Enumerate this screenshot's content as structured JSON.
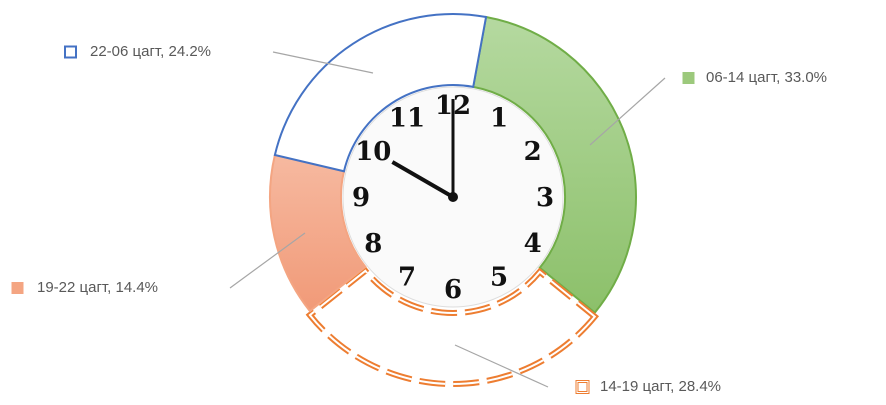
{
  "chart_data": {
    "type": "doughnut",
    "values": [
      33.0,
      28.4,
      14.4,
      24.2
    ],
    "value_labels": [
      "06-14 цагт, 33.0%",
      "14-19 цагт, 28.4%",
      "19-22 цагт, 14.4%",
      "22-06 цагт, 24.2%"
    ],
    "colors": [
      "#9cc97c",
      "#ed7d31",
      "#f4a582",
      "#4472c4"
    ],
    "clock_numerals": [
      "12",
      "1",
      "2",
      "3",
      "4",
      "5",
      "6",
      "7",
      "8",
      "9",
      "10",
      "11"
    ]
  }
}
